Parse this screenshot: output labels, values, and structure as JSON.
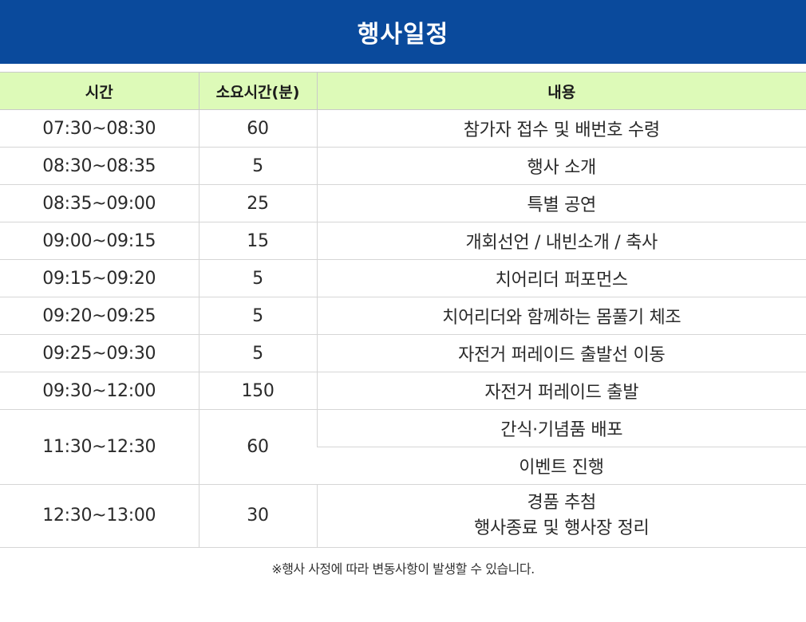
{
  "header": {
    "title": "행사일정"
  },
  "table": {
    "columns": [
      "시간",
      "소요시간(분)",
      "내용"
    ],
    "rows": [
      {
        "time": "07:30~08:30",
        "duration": "60",
        "content": [
          "참가자 접수 및 배번호 수령"
        ]
      },
      {
        "time": "08:30~08:35",
        "duration": "5",
        "content": [
          "행사 소개"
        ]
      },
      {
        "time": "08:35~09:00",
        "duration": "25",
        "content": [
          "특별 공연"
        ]
      },
      {
        "time": "09:00~09:15",
        "duration": "15",
        "content": [
          "개회선언 / 내빈소개 / 축사"
        ]
      },
      {
        "time": "09:15~09:20",
        "duration": "5",
        "content": [
          "치어리더 퍼포먼스"
        ]
      },
      {
        "time": "09:20~09:25",
        "duration": "5",
        "content": [
          "치어리더와 함께하는 몸풀기 체조"
        ]
      },
      {
        "time": "09:25~09:30",
        "duration": "5",
        "content": [
          "자전거 퍼레이드 출발선 이동"
        ]
      },
      {
        "time": "09:30~12:00",
        "duration": "150",
        "content": [
          "자전거 퍼레이드 출발"
        ]
      },
      {
        "time": "11:30~12:30",
        "duration": "60",
        "content": [
          "간식·기념품 배포",
          "이벤트 진행"
        ]
      },
      {
        "time": "12:30~13:00",
        "duration": "30",
        "content": [
          "경품 추첨",
          "행사종료 및 행사장 정리"
        ]
      }
    ]
  },
  "footnote": "※행사 사정에 따라 변동사항이 발생할 수 있습니다.",
  "colors": {
    "title_bar": "#0a4a9c",
    "header_row": "#ddfab8"
  }
}
